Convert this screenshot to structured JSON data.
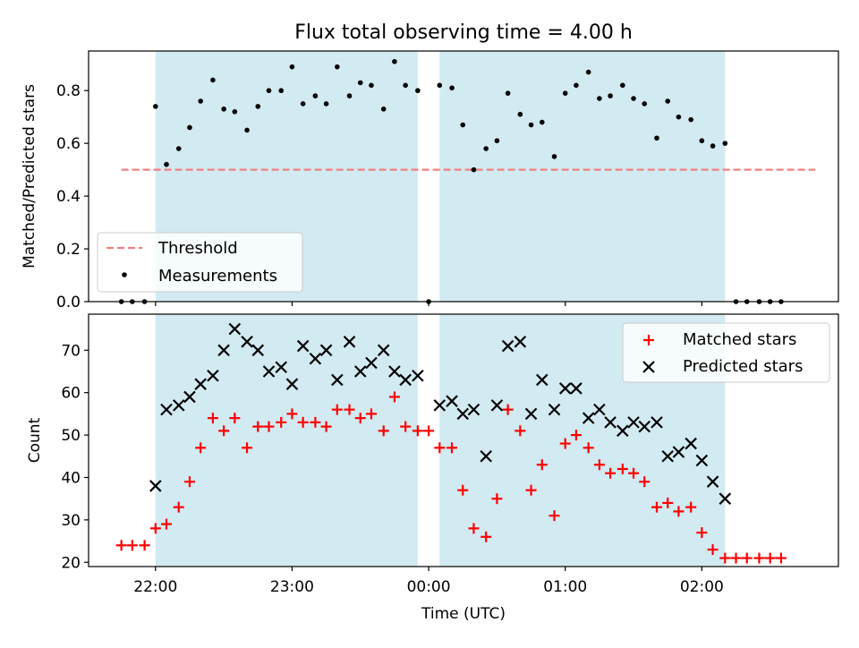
{
  "chart_data": {
    "type": "scatter",
    "title": "Flux total observing time = 4.00 h",
    "xlabel": "Time (UTC)",
    "x_tick_labels": [
      "22:00",
      "23:00",
      "00:00",
      "01:00",
      "02:00"
    ],
    "x_ticks_hours": [
      0,
      1,
      2,
      3,
      4
    ],
    "x_unit_note": "hours after 22:00 UTC",
    "xlim_hours": [
      -0.49,
      5.0
    ],
    "shaded_intervals_hours": [
      [
        0.0,
        1.92
      ],
      [
        2.08,
        4.17
      ]
    ],
    "shade_color": "#add8e6",
    "top": {
      "ylabel": "Matched/Predicted stars",
      "ylim": [
        0.0,
        0.95
      ],
      "y_ticks": [
        "0.0",
        "0.2",
        "0.4",
        "0.6",
        "0.8"
      ],
      "legend_position": "lower left",
      "threshold": {
        "name": "Threshold",
        "value": 0.5,
        "x_range_hours": [
          -0.25,
          4.83
        ],
        "color": "#f08080"
      },
      "measurements": {
        "name": "Measurements",
        "color": "#000000",
        "x": [
          -0.25,
          -0.17,
          -0.08,
          0.0,
          0.08,
          0.17,
          0.25,
          0.33,
          0.42,
          0.5,
          0.58,
          0.67,
          0.75,
          0.83,
          0.92,
          1.0,
          1.08,
          1.17,
          1.25,
          1.33,
          1.42,
          1.5,
          1.58,
          1.67,
          1.75,
          1.83,
          1.92,
          2.0,
          2.08,
          2.17,
          2.25,
          2.33,
          2.42,
          2.5,
          2.58,
          2.67,
          2.75,
          2.83,
          2.92,
          3.0,
          3.08,
          3.17,
          3.25,
          3.33,
          3.42,
          3.5,
          3.58,
          3.67,
          3.75,
          3.83,
          3.92,
          4.0,
          4.08,
          4.17,
          4.25,
          4.33,
          4.42,
          4.5,
          4.58
        ],
        "y": [
          0.0,
          0.0,
          0.0,
          0.74,
          0.52,
          0.58,
          0.66,
          0.76,
          0.84,
          0.73,
          0.72,
          0.65,
          0.74,
          0.8,
          0.8,
          0.89,
          0.75,
          0.78,
          0.75,
          0.89,
          0.78,
          0.83,
          0.82,
          0.73,
          0.91,
          0.82,
          0.8,
          0.0,
          0.82,
          0.81,
          0.67,
          0.5,
          0.58,
          0.61,
          0.79,
          0.71,
          0.67,
          0.68,
          0.55,
          0.79,
          0.82,
          0.87,
          0.77,
          0.78,
          0.82,
          0.77,
          0.75,
          0.62,
          0.76,
          0.7,
          0.69,
          0.61,
          0.59,
          0.6,
          0.0,
          0.0,
          0.0,
          0.0,
          0.0
        ]
      }
    },
    "bottom": {
      "ylabel": "Count",
      "ylim": [
        19.0,
        78.5
      ],
      "y_ticks": [
        "20",
        "30",
        "40",
        "50",
        "60",
        "70"
      ],
      "legend_position": "upper right",
      "matched": {
        "name": "Matched stars",
        "color": "#ff0000",
        "x": [
          -0.25,
          -0.17,
          -0.08,
          0.0,
          0.08,
          0.17,
          0.25,
          0.33,
          0.42,
          0.5,
          0.58,
          0.67,
          0.75,
          0.83,
          0.92,
          1.0,
          1.08,
          1.17,
          1.25,
          1.33,
          1.42,
          1.5,
          1.58,
          1.67,
          1.75,
          1.83,
          1.92,
          2.0,
          2.08,
          2.17,
          2.25,
          2.33,
          2.42,
          2.5,
          2.58,
          2.67,
          2.75,
          2.83,
          2.92,
          3.0,
          3.08,
          3.17,
          3.25,
          3.33,
          3.42,
          3.5,
          3.58,
          3.67,
          3.75,
          3.83,
          3.92,
          4.0,
          4.08,
          4.17,
          4.25,
          4.33,
          4.42,
          4.5,
          4.58
        ],
        "y": [
          24,
          24,
          24,
          28,
          29,
          33,
          39,
          47,
          54,
          51,
          54,
          47,
          52,
          52,
          53,
          55,
          53,
          53,
          52,
          56,
          56,
          54,
          55,
          51,
          59,
          52,
          51,
          51,
          47,
          47,
          37,
          28,
          26,
          35,
          56,
          51,
          37,
          43,
          31,
          48,
          50,
          47,
          43,
          41,
          42,
          41,
          39,
          33,
          34,
          32,
          33,
          27,
          23,
          21,
          21,
          21,
          21,
          21,
          21
        ]
      },
      "predicted": {
        "name": "Predicted stars",
        "color": "#000000",
        "x": [
          0.0,
          0.08,
          0.17,
          0.25,
          0.33,
          0.42,
          0.5,
          0.58,
          0.67,
          0.75,
          0.83,
          0.92,
          1.0,
          1.08,
          1.17,
          1.25,
          1.33,
          1.42,
          1.5,
          1.58,
          1.67,
          1.75,
          1.83,
          1.92,
          2.08,
          2.17,
          2.25,
          2.33,
          2.42,
          2.5,
          2.58,
          2.67,
          2.75,
          2.83,
          2.92,
          3.0,
          3.08,
          3.17,
          3.25,
          3.33,
          3.42,
          3.5,
          3.58,
          3.67,
          3.75,
          3.83,
          3.92,
          4.0,
          4.08,
          4.17
        ],
        "y": [
          38,
          56,
          57,
          59,
          62,
          64,
          70,
          75,
          72,
          70,
          65,
          66,
          62,
          71,
          68,
          70,
          63,
          72,
          65,
          67,
          70,
          65,
          63,
          64,
          57,
          58,
          55,
          56,
          45,
          57,
          71,
          72,
          55,
          63,
          56,
          61,
          61,
          54,
          56,
          53,
          51,
          53,
          52,
          53,
          45,
          46,
          48,
          44,
          39,
          35
        ]
      }
    }
  }
}
